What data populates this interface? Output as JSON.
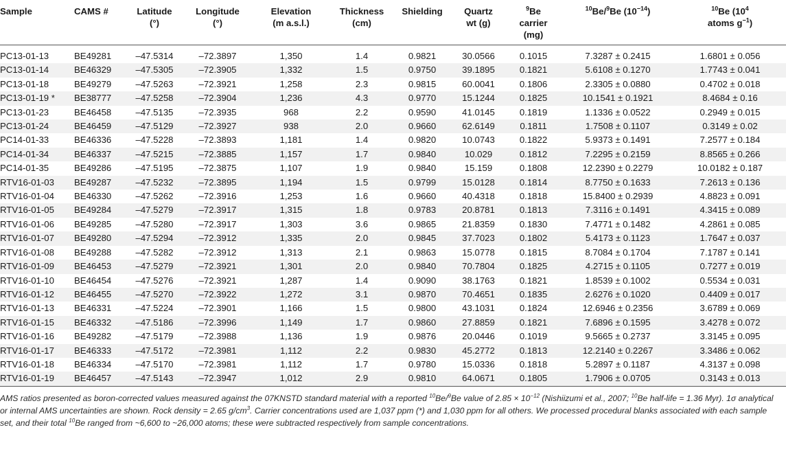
{
  "table": {
    "headers": {
      "sample": "Sample",
      "cams": "CAMS #",
      "latitude": "Latitude",
      "latitude_unit": "(°)",
      "longitude": "Longitude",
      "longitude_unit": "(°)",
      "elevation": "Elevation",
      "elevation_unit": "(m a.s.l.)",
      "thickness": "Thickness",
      "thickness_unit": "(cm)",
      "shielding": "Shielding",
      "quartz": "Quartz",
      "quartz_unit": "wt (g)",
      "be_carrier_sup": "9",
      "be_carrier_1": "Be",
      "be_carrier_2": "carrier",
      "be_carrier_3": "(mg)",
      "ratio_sup1": "10",
      "ratio_mid": "Be/",
      "ratio_sup2": "9",
      "ratio_end": "Be (10",
      "ratio_exp": "−14",
      "ratio_close": ")",
      "conc_sup": "10",
      "conc_1": "Be (10",
      "conc_exp": "4",
      "conc_2": "atoms g",
      "conc_exp2": "−1",
      "conc_close": ")"
    },
    "rows": [
      {
        "sample": "PC13-01-13",
        "cams": "BE49281",
        "lat": "–47.5314",
        "lon": "–72.3897",
        "elev": "1,350",
        "thick": "1.4",
        "shield": "0.9821",
        "quartz": "30.0566",
        "carrier": "0.1015",
        "ratio": "7.3287 ± 0.2415",
        "conc": "1.6801 ± 0.056"
      },
      {
        "sample": "PC13-01-14",
        "cams": "BE46329",
        "lat": "–47.5305",
        "lon": "–72.3905",
        "elev": "1,332",
        "thick": "1.5",
        "shield": "0.9750",
        "quartz": "39.1895",
        "carrier": "0.1821",
        "ratio": "5.6108 ± 0.1270",
        "conc": "1.7743 ± 0.041"
      },
      {
        "sample": "PC13-01-18",
        "cams": "BE49279",
        "lat": "–47.5263",
        "lon": "–72.3921",
        "elev": "1,258",
        "thick": "2.3",
        "shield": "0.9815",
        "quartz": "60.0041",
        "carrier": "0.1806",
        "ratio": "2.3305 ± 0.0880",
        "conc": "0.4702 ± 0.018"
      },
      {
        "sample": "PC13-01-19 *",
        "cams": "BE38777",
        "lat": "–47.5258",
        "lon": "–72.3904",
        "elev": "1,236",
        "thick": "4.3",
        "shield": "0.9770",
        "quartz": "15.1244",
        "carrier": "0.1825",
        "ratio": "10.1541 ± 0.1921",
        "conc": "8.4684 ± 0.16"
      },
      {
        "sample": "PC13-01-23",
        "cams": "BE46458",
        "lat": "–47.5135",
        "lon": "–72.3935",
        "elev": "968",
        "thick": "2.2",
        "shield": "0.9590",
        "quartz": "41.0145",
        "carrier": "0.1819",
        "ratio": "1.1336 ± 0.0522",
        "conc": "0.2949 ± 0.015"
      },
      {
        "sample": "PC13-01-24",
        "cams": "BE46459",
        "lat": "–47.5129",
        "lon": "–72.3927",
        "elev": "938",
        "thick": "2.0",
        "shield": "0.9660",
        "quartz": "62.6149",
        "carrier": "0.1811",
        "ratio": "1.7508 ± 0.1107",
        "conc": "0.3149 ± 0.02"
      },
      {
        "sample": "PC14-01-33",
        "cams": "BE46336",
        "lat": "–47.5228",
        "lon": "–72.3893",
        "elev": "1,181",
        "thick": "1.4",
        "shield": "0.9820",
        "quartz": "10.0743",
        "carrier": "0.1822",
        "ratio": "5.9373 ± 0.1491",
        "conc": "7.2577 ± 0.184"
      },
      {
        "sample": "PC14-01-34",
        "cams": "BE46337",
        "lat": "–47.5215",
        "lon": "–72.3885",
        "elev": "1,157",
        "thick": "1.7",
        "shield": "0.9840",
        "quartz": "10.029",
        "carrier": "0.1812",
        "ratio": "7.2295 ± 0.2159",
        "conc": "8.8565 ± 0.266"
      },
      {
        "sample": "PC14-01-35",
        "cams": "BE49286",
        "lat": "–47.5195",
        "lon": "–72.3875",
        "elev": "1,107",
        "thick": "1.9",
        "shield": "0.9840",
        "quartz": "15.159",
        "carrier": "0.1808",
        "ratio": "12.2390 ± 0.2279",
        "conc": "10.0182 ± 0.187"
      },
      {
        "sample": "RTV16-01-03",
        "cams": "BE49287",
        "lat": "–47.5232",
        "lon": "–72.3895",
        "elev": "1,194",
        "thick": "1.5",
        "shield": "0.9799",
        "quartz": "15.0128",
        "carrier": "0.1814",
        "ratio": "8.7750 ± 0.1633",
        "conc": "7.2613 ± 0.136"
      },
      {
        "sample": "RTV16-01-04",
        "cams": "BE46330",
        "lat": "–47.5262",
        "lon": "–72.3916",
        "elev": "1,253",
        "thick": "1.6",
        "shield": "0.9660",
        "quartz": "40.4318",
        "carrier": "0.1818",
        "ratio": "15.8400 ± 0.2939",
        "conc": "4.8823 ± 0.091"
      },
      {
        "sample": "RTV16-01-05",
        "cams": "BE49284",
        "lat": "–47.5279",
        "lon": "–72.3917",
        "elev": "1,315",
        "thick": "1.8",
        "shield": "0.9783",
        "quartz": "20.8781",
        "carrier": "0.1813",
        "ratio": "7.3116 ± 0.1491",
        "conc": "4.3415 ± 0.089"
      },
      {
        "sample": "RTV16-01-06",
        "cams": "BE49285",
        "lat": "–47.5280",
        "lon": "–72.3917",
        "elev": "1,303",
        "thick": "3.6",
        "shield": "0.9865",
        "quartz": "21.8359",
        "carrier": "0.1830",
        "ratio": "7.4771 ± 0.1482",
        "conc": "4.2861 ± 0.085"
      },
      {
        "sample": "RTV16-01-07",
        "cams": "BE49280",
        "lat": "–47.5294",
        "lon": "–72.3912",
        "elev": "1,335",
        "thick": "2.0",
        "shield": "0.9845",
        "quartz": "37.7023",
        "carrier": "0.1802",
        "ratio": "5.4173 ± 0.1123",
        "conc": "1.7647 ± 0.037"
      },
      {
        "sample": "RTV16-01-08",
        "cams": "BE49288",
        "lat": "–47.5282",
        "lon": "–72.3912",
        "elev": "1,313",
        "thick": "2.1",
        "shield": "0.9863",
        "quartz": "15.0778",
        "carrier": "0.1815",
        "ratio": "8.7084 ± 0.1704",
        "conc": "7.1787 ± 0.141"
      },
      {
        "sample": "RTV16-01-09",
        "cams": "BE46453",
        "lat": "–47.5279",
        "lon": "–72.3921",
        "elev": "1,301",
        "thick": "2.0",
        "shield": "0.9840",
        "quartz": "70.7804",
        "carrier": "0.1825",
        "ratio": "4.2715 ± 0.1105",
        "conc": "0.7277 ± 0.019"
      },
      {
        "sample": "RTV16-01-10",
        "cams": "BE46454",
        "lat": "–47.5276",
        "lon": "–72.3921",
        "elev": "1,287",
        "thick": "1.4",
        "shield": "0.9090",
        "quartz": "38.1763",
        "carrier": "0.1821",
        "ratio": "1.8539 ± 0.1002",
        "conc": "0.5534 ± 0.031"
      },
      {
        "sample": "RTV16-01-12",
        "cams": "BE46455",
        "lat": "–47.5270",
        "lon": "–72.3922",
        "elev": "1,272",
        "thick": "3.1",
        "shield": "0.9870",
        "quartz": "70.4651",
        "carrier": "0.1835",
        "ratio": "2.6276 ± 0.1020",
        "conc": "0.4409 ± 0.017"
      },
      {
        "sample": "RTV16-01-13",
        "cams": "BE46331",
        "lat": "–47.5224",
        "lon": "–72.3901",
        "elev": "1,166",
        "thick": "1.5",
        "shield": "0.9800",
        "quartz": "43.1031",
        "carrier": "0.1824",
        "ratio": "12.6946 ± 0.2356",
        "conc": "3.6789 ± 0.069"
      },
      {
        "sample": "RTV16-01-15",
        "cams": "BE46332",
        "lat": "–47.5186",
        "lon": "–72.3996",
        "elev": "1,149",
        "thick": "1.7",
        "shield": "0.9860",
        "quartz": "27.8859",
        "carrier": "0.1821",
        "ratio": "7.6896 ± 0.1595",
        "conc": "3.4278 ± 0.072"
      },
      {
        "sample": "RTV16-01-16",
        "cams": "BE49282",
        "lat": "–47.5179",
        "lon": "–72.3988",
        "elev": "1,136",
        "thick": "1.9",
        "shield": "0.9876",
        "quartz": "20.0446",
        "carrier": "0.1019",
        "ratio": "9.5665 ± 0.2737",
        "conc": "3.3145 ± 0.095"
      },
      {
        "sample": "RTV16-01-17",
        "cams": "BE46333",
        "lat": "–47.5172",
        "lon": "–72.3981",
        "elev": "1,112",
        "thick": "2.2",
        "shield": "0.9830",
        "quartz": "45.2772",
        "carrier": "0.1813",
        "ratio": "12.2140 ± 0.2267",
        "conc": "3.3486 ± 0.062"
      },
      {
        "sample": "RTV16-01-18",
        "cams": "BE46334",
        "lat": "–47.5170",
        "lon": "–72.3981",
        "elev": "1,112",
        "thick": "1.7",
        "shield": "0.9780",
        "quartz": "15.0336",
        "carrier": "0.1818",
        "ratio": "5.2897 ± 0.1187",
        "conc": "4.3137 ± 0.098"
      },
      {
        "sample": "RTV16-01-19",
        "cams": "BE46457",
        "lat": "–47.5143",
        "lon": "–72.3947",
        "elev": "1,012",
        "thick": "2.9",
        "shield": "0.9810",
        "quartz": "64.0671",
        "carrier": "0.1805",
        "ratio": "1.7906 ± 0.0705",
        "conc": "0.3143 ± 0.013"
      }
    ]
  },
  "footnote": {
    "p1": "AMS ratios presented as boron-corrected values measured against the 07KNSTD standard material with a reported ",
    "sup1": "10",
    "p2": "Be/",
    "sup2": "9",
    "p3": "Be value of 2.85 × 10",
    "sup3": "−12",
    "p4": " (Nishiizumi et al., 2007; ",
    "sup4": "10",
    "p5": "Be half-life = 1.36 Myr). 1σ analytical or internal AMS uncertainties are shown. Rock density = 2.65 g/cm",
    "sup5": "3",
    "p6": ". Carrier concentrations used are 1,037 ppm (*) and 1,030 ppm for all others. We processed procedural blanks associated with each sample set, and their total ",
    "sup6": "10",
    "p7": "Be ranged from ~6,600 to ~26,000 atoms; these were subtracted respectively from sample concentrations."
  }
}
